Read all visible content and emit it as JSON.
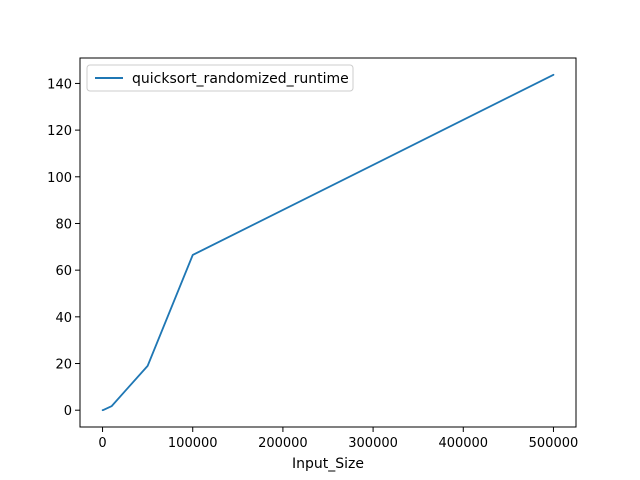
{
  "chart_data": {
    "type": "line",
    "title": "",
    "xlabel": "Input_Size",
    "ylabel": "",
    "xlim": [
      -25000,
      525000
    ],
    "ylim": [
      -7.2,
      150.9
    ],
    "xticks": [
      0,
      100000,
      200000,
      300000,
      400000,
      500000
    ],
    "yticks": [
      0,
      20,
      40,
      60,
      80,
      100,
      120,
      140
    ],
    "grid": false,
    "legend_position": "top-left",
    "series": [
      {
        "name": "quicksort_randomized_runtime",
        "color": "#1f77b4",
        "x": [
          100,
          1000,
          10000,
          50000,
          100000,
          500000
        ],
        "y": [
          0.01,
          0.1,
          1.7,
          19.0,
          66.5,
          143.7
        ]
      }
    ]
  }
}
